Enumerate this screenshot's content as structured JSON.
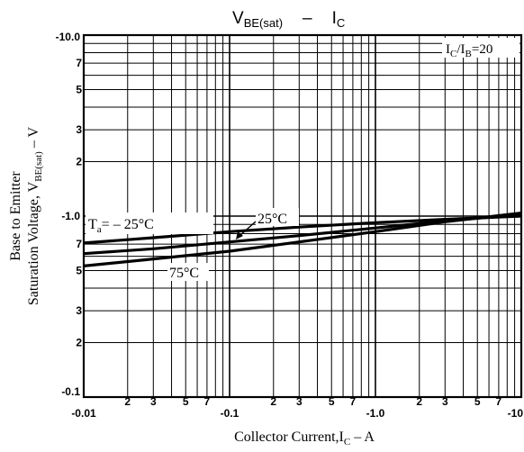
{
  "chart_data": {
    "type": "line",
    "title": "V",
    "title_sub": "BE(sat)",
    "title_sep": "–",
    "title_i": "I",
    "title_i_sub": "C",
    "xlabel": "Collector Current,I",
    "xlabel_sub": "C",
    "xlabel_unit": " – A",
    "ylabel_line1": "Base to Emitter",
    "ylabel_line2": "Saturation Voltage, V",
    "ylabel_line2_sub": "BE(sat)",
    "ylabel_line2_unit": " – V",
    "x_scale": "log",
    "y_scale": "log",
    "xlim": [
      0.01,
      10
    ],
    "ylim": [
      0.1,
      10
    ],
    "grid": true,
    "condition": {
      "main": "I",
      "sub1": "C",
      "mid": "/I",
      "sub2": "B",
      "tail": "=20"
    },
    "x_tick_labels": [
      {
        "v": 0.01,
        "t": "-0.01",
        "major": true
      },
      {
        "v": 0.02,
        "t": "2"
      },
      {
        "v": 0.03,
        "t": "3"
      },
      {
        "v": 0.05,
        "t": "5"
      },
      {
        "v": 0.07,
        "t": "7"
      },
      {
        "v": 0.1,
        "t": "-0.1",
        "major": true
      },
      {
        "v": 0.2,
        "t": "2"
      },
      {
        "v": 0.3,
        "t": "3"
      },
      {
        "v": 0.5,
        "t": "5"
      },
      {
        "v": 0.7,
        "t": "7"
      },
      {
        "v": 1,
        "t": "-1.0",
        "major": true
      },
      {
        "v": 2,
        "t": "2"
      },
      {
        "v": 3,
        "t": "3"
      },
      {
        "v": 5,
        "t": "5"
      },
      {
        "v": 7,
        "t": "7"
      },
      {
        "v": 10,
        "t": "-10",
        "major": true
      }
    ],
    "y_tick_labels": [
      {
        "v": 10,
        "t": "-10.0",
        "major": true
      },
      {
        "v": 7,
        "t": "7"
      },
      {
        "v": 5,
        "t": "5"
      },
      {
        "v": 3,
        "t": "3"
      },
      {
        "v": 2,
        "t": "2"
      },
      {
        "v": 1,
        "t": "-1.0",
        "major": true
      },
      {
        "v": 0.7,
        "t": "7"
      },
      {
        "v": 0.5,
        "t": "5"
      },
      {
        "v": 0.3,
        "t": "3"
      },
      {
        "v": 0.2,
        "t": "2"
      },
      {
        "v": 0.1,
        "t": "-0.1",
        "major": true
      }
    ],
    "series": [
      {
        "label_main": "T",
        "label_sub": "a",
        "label_tail": "= – 25°C",
        "x": [
          0.01,
          0.03,
          0.1,
          0.3,
          1,
          3,
          10
        ],
        "y": [
          0.71,
          0.76,
          0.82,
          0.87,
          0.92,
          0.96,
          1.0
        ]
      },
      {
        "label_main": "25°C",
        "label_sub": "",
        "label_tail": "",
        "x": [
          0.01,
          0.03,
          0.1,
          0.3,
          1,
          3,
          10
        ],
        "y": [
          0.62,
          0.66,
          0.72,
          0.78,
          0.86,
          0.94,
          1.02
        ]
      },
      {
        "label_main": "75°C",
        "label_sub": "",
        "label_tail": "",
        "x": [
          0.01,
          0.03,
          0.1,
          0.3,
          1,
          3,
          10
        ],
        "y": [
          0.53,
          0.58,
          0.64,
          0.72,
          0.82,
          0.93,
          1.04
        ]
      }
    ]
  }
}
